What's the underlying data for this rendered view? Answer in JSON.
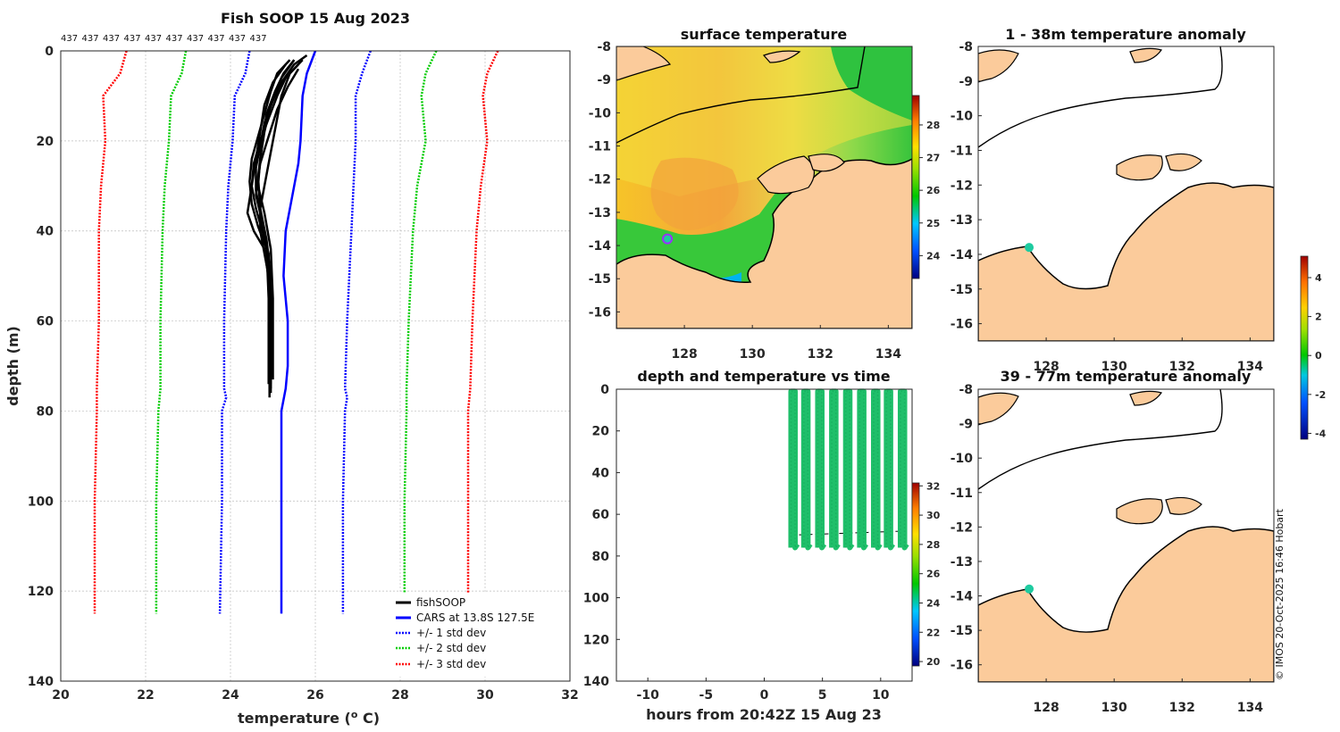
{
  "footer": {
    "credit": "© IMOS 20-Oct-2025 16:46 Hobart"
  },
  "colors": {
    "land": "#fbcb9b",
    "fish": "#000000",
    "cars": "#0000ff",
    "std1": "#0000ff",
    "std2": "#00cc00",
    "std3": "#ff0000",
    "marker": "#1ecba0",
    "marker_ring": "#9b30ff"
  },
  "chart_data": [
    {
      "id": "profile",
      "type": "line",
      "title": "Fish SOOP 15 Aug 2023",
      "profile_counts": [
        "437",
        "437",
        "437",
        "437",
        "437",
        "437",
        "437",
        "437",
        "437",
        "437"
      ],
      "xlabel": "temperature (",
      "xlabel_sup": "o",
      "xlabel_end": " C)",
      "ylabel": "depth (m)",
      "xlim": [
        20,
        32
      ],
      "ylim": [
        0,
        140
      ],
      "xticks": [
        "20",
        "22",
        "24",
        "26",
        "28",
        "30",
        "32"
      ],
      "yticks": [
        "0",
        "20",
        "40",
        "60",
        "80",
        "100",
        "120",
        "140"
      ],
      "fishsoop_traces": [
        {
          "temp": [
            25.7,
            25.4,
            25.2,
            25.1,
            25.0,
            24.9,
            24.8,
            24.7,
            24.7,
            24.8,
            24.9,
            24.95,
            24.95,
            24.95,
            24.95
          ],
          "depth": [
            2,
            5,
            10,
            15,
            20,
            25,
            30,
            35,
            40,
            45,
            50,
            55,
            60,
            70,
            76
          ]
        },
        {
          "temp": [
            25.5,
            25.2,
            25.0,
            24.8,
            24.7,
            24.6,
            24.6,
            24.7,
            24.8,
            24.9,
            24.9,
            24.95,
            24.95,
            24.95
          ],
          "depth": [
            2,
            6,
            11,
            16,
            21,
            26,
            31,
            36,
            41,
            46,
            52,
            60,
            68,
            75
          ]
        },
        {
          "temp": [
            25.6,
            25.3,
            25.1,
            24.9,
            24.7,
            24.55,
            24.5,
            24.6,
            24.75,
            24.9,
            24.92,
            24.92,
            24.92
          ],
          "depth": [
            3,
            6,
            10,
            15,
            20,
            25,
            30,
            35,
            40,
            45,
            55,
            65,
            77
          ]
        },
        {
          "temp": [
            25.4,
            25.1,
            24.95,
            24.8,
            24.65,
            24.5,
            24.45,
            24.5,
            24.65,
            24.85,
            24.9,
            24.9
          ],
          "depth": [
            2,
            5,
            9,
            14,
            19,
            24,
            29,
            34,
            39,
            44,
            55,
            74
          ]
        },
        {
          "temp": [
            25.8,
            25.5,
            25.2,
            24.95,
            24.8,
            24.7,
            24.65,
            24.8,
            24.95,
            25.0,
            25.0
          ],
          "depth": [
            1,
            3,
            7,
            12,
            18,
            24,
            30,
            36,
            44,
            55,
            73
          ]
        },
        {
          "temp": [
            25.3,
            25.0,
            24.8,
            24.7,
            24.6,
            24.5,
            24.4,
            24.55,
            24.8,
            24.92,
            24.92
          ],
          "depth": [
            3,
            7,
            12,
            18,
            24,
            30,
            36,
            40,
            44,
            52,
            70
          ]
        },
        {
          "temp": [
            25.5,
            25.25,
            25.05,
            24.85,
            24.75,
            24.65,
            24.7,
            24.85,
            24.95,
            24.97
          ],
          "depth": [
            2,
            5,
            9,
            14,
            20,
            28,
            35,
            42,
            50,
            72
          ]
        },
        {
          "temp": [
            25.6,
            25.35,
            25.1,
            24.9,
            24.7,
            24.6,
            24.75,
            24.9,
            24.95
          ],
          "depth": [
            4,
            8,
            13,
            19,
            25,
            32,
            38,
            46,
            74
          ]
        }
      ],
      "cars": {
        "temp": [
          26.0,
          25.8,
          25.7,
          25.65,
          25.6,
          25.5,
          25.3,
          25.25,
          25.35,
          25.35,
          25.3,
          25.2,
          25.2,
          25.2,
          25.2
        ],
        "depth": [
          0,
          5,
          10,
          20,
          25,
          30,
          40,
          50,
          60,
          70,
          75,
          80,
          100,
          120,
          125
        ]
      },
      "std1_lo": {
        "temp": [
          24.45,
          24.35,
          24.1,
          24.05,
          23.95,
          23.9,
          23.85,
          23.85,
          23.9,
          23.8,
          23.8,
          23.75
        ],
        "depth": [
          0,
          5,
          10,
          20,
          30,
          40,
          60,
          75,
          77,
          80,
          100,
          125
        ]
      },
      "std1_hi": {
        "temp": [
          27.3,
          27.1,
          26.95,
          26.95,
          26.9,
          26.85,
          26.75,
          26.7,
          26.75,
          26.7,
          26.65,
          26.65
        ],
        "depth": [
          0,
          5,
          10,
          20,
          30,
          40,
          60,
          75,
          77,
          80,
          100,
          125
        ]
      },
      "std2_lo": {
        "temp": [
          22.95,
          22.85,
          22.6,
          22.55,
          22.45,
          22.4,
          22.35,
          22.35,
          22.3,
          22.25,
          22.25
        ],
        "depth": [
          0,
          5,
          10,
          20,
          30,
          40,
          60,
          75,
          80,
          100,
          125
        ]
      },
      "std2_hi": {
        "temp": [
          28.85,
          28.6,
          28.5,
          28.6,
          28.4,
          28.3,
          28.2,
          28.15,
          28.15,
          28.1,
          28.1
        ],
        "depth": [
          0,
          5,
          10,
          20,
          30,
          40,
          60,
          75,
          80,
          100,
          125
        ]
      },
      "std3_lo": {
        "temp": [
          21.55,
          21.4,
          21.0,
          21.05,
          20.95,
          20.9,
          20.9,
          20.85,
          20.85,
          20.8,
          20.8
        ],
        "depth": [
          0,
          5,
          10,
          20,
          30,
          40,
          60,
          75,
          80,
          100,
          125
        ]
      },
      "std3_hi": {
        "temp": [
          30.3,
          30.05,
          29.95,
          30.05,
          29.9,
          29.8,
          29.7,
          29.65,
          29.6,
          29.6,
          29.6
        ],
        "depth": [
          0,
          5,
          10,
          20,
          30,
          40,
          60,
          75,
          80,
          100,
          125
        ]
      },
      "legend": [
        "fishSOOP",
        "CARS at 13.8S 127.5E",
        "+/- 1 std dev",
        "+/- 2 std dev",
        "+/- 3 std dev"
      ]
    },
    {
      "id": "sst_map",
      "type": "heatmap",
      "title": "surface temperature",
      "xlim": [
        126,
        134.7
      ],
      "ylim": [
        -16.5,
        -8
      ],
      "xticks": [
        "128",
        "130",
        "132",
        "134"
      ],
      "yticks": [
        "-8",
        "-9",
        "-10",
        "-11",
        "-12",
        "-13",
        "-14",
        "-15",
        "-16"
      ],
      "colorbar": {
        "range": [
          23.3,
          28.9
        ],
        "ticks": [
          "24",
          "25",
          "26",
          "27",
          "28"
        ]
      },
      "marker": {
        "lon": 127.5,
        "lat": -13.8
      }
    },
    {
      "id": "depth_time",
      "type": "scatter",
      "title": "depth and temperature vs time",
      "xlabel": "hours from 20:42Z 15 Aug 23",
      "xlim": [
        -12.7,
        12.7
      ],
      "ylim": [
        0,
        140
      ],
      "xticks": [
        "-10",
        "-5",
        "0",
        "5",
        "10"
      ],
      "yticks": [
        "0",
        "20",
        "40",
        "60",
        "80",
        "100",
        "120",
        "140"
      ],
      "dive_times": [
        2.3,
        3.4,
        4.6,
        5.8,
        7.0,
        8.2,
        9.4,
        10.5,
        11.7
      ],
      "dive_min_depth": 1,
      "dive_max_depth": 76,
      "bottom_depth": 70,
      "colorbar": {
        "range": [
          19.7,
          32.2
        ],
        "ticks": [
          "20",
          "22",
          "24",
          "26",
          "28",
          "30",
          "32"
        ]
      }
    },
    {
      "id": "anom_shallow",
      "type": "heatmap",
      "title": "1 - 38m temperature anomaly",
      "xlim": [
        126,
        134.7
      ],
      "ylim": [
        -16.5,
        -8
      ],
      "yticks": [
        "-8",
        "-9",
        "-10",
        "-11",
        "-12",
        "-13",
        "-14",
        "-15",
        "-16"
      ],
      "xticks": [
        "128",
        "130",
        "132",
        "134"
      ],
      "marker": {
        "lon": 127.5,
        "lat": -13.8
      }
    },
    {
      "id": "anom_deep",
      "type": "heatmap",
      "title": "39 - 77m temperature anomaly",
      "xlim": [
        126,
        134.7
      ],
      "ylim": [
        -16.5,
        -8
      ],
      "yticks": [
        "-8",
        "-9",
        "-10",
        "-11",
        "-12",
        "-13",
        "-14",
        "-15",
        "-16"
      ],
      "xticks": [
        "128",
        "130",
        "132",
        "134"
      ],
      "marker": {
        "lon": 127.5,
        "lat": -13.8
      },
      "colorbar": {
        "range": [
          -4.3,
          5.1
        ],
        "ticks": [
          "4",
          "2",
          "0",
          "-2",
          "-4"
        ]
      }
    }
  ]
}
